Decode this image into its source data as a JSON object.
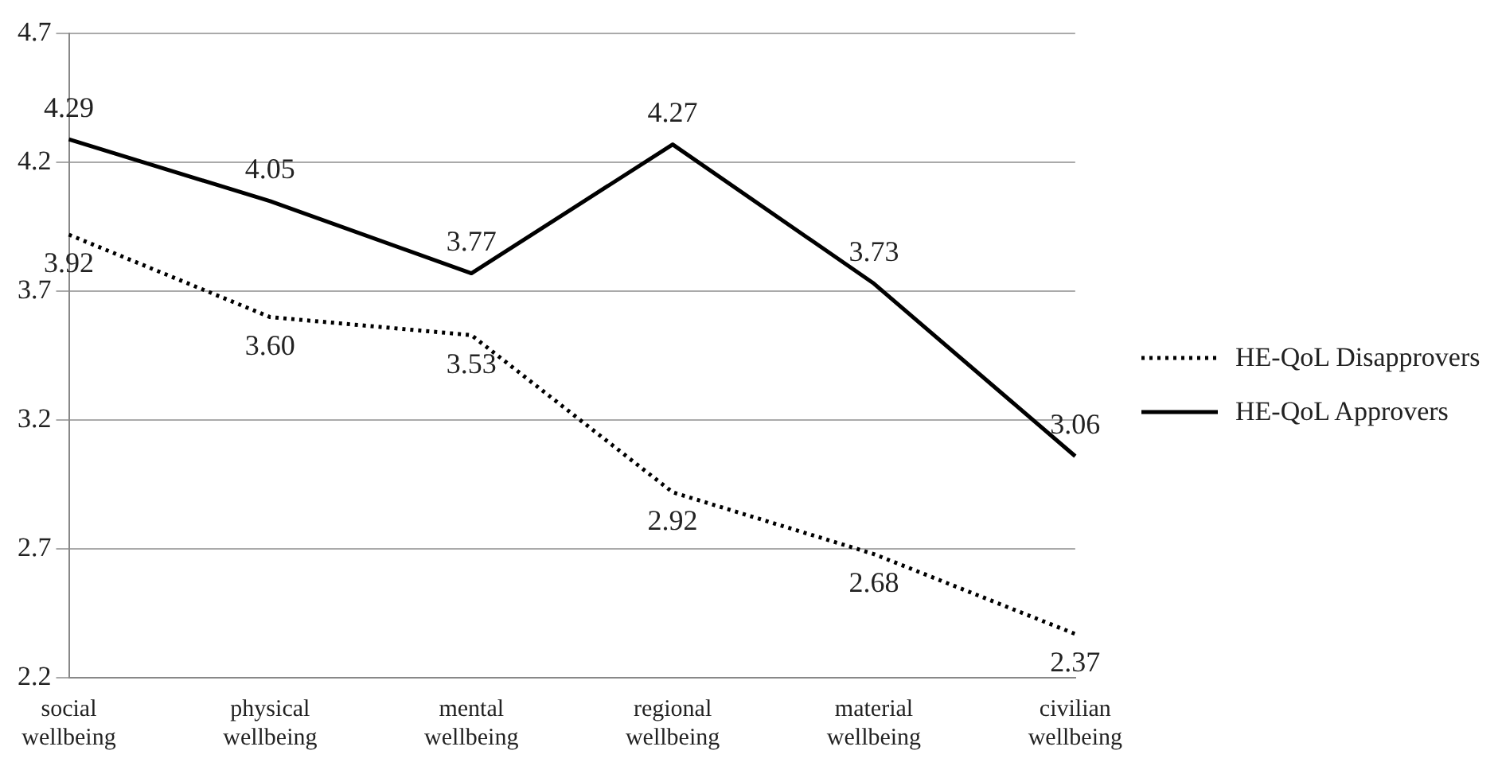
{
  "chart_data": {
    "type": "line",
    "categories": [
      "social wellbeing",
      "physical wellbeing",
      "mental wellbeing",
      "regional wellbeing",
      "material wellbeing",
      "civilian wellbeing"
    ],
    "series": [
      {
        "name": "HE-QoL Disapprovers",
        "color": "#000000",
        "line_style": "dotted",
        "values": [
          3.92,
          3.6,
          3.53,
          2.92,
          2.68,
          2.37
        ],
        "value_labels": [
          "3.92",
          "3.60",
          "3.53",
          "2.92",
          "2.68",
          "2.37"
        ]
      },
      {
        "name": "HE-QoL Approvers",
        "color": "#000000",
        "line_style": "solid",
        "values": [
          4.29,
          4.05,
          3.77,
          4.27,
          3.73,
          3.06
        ],
        "value_labels": [
          "4.29",
          "4.05",
          "3.77",
          "4.27",
          "3.73",
          "3.06"
        ]
      }
    ],
    "ylim": [
      2.2,
      4.7
    ],
    "yticks": [
      2.2,
      2.7,
      3.2,
      3.7,
      4.2,
      4.7
    ],
    "grid": "y",
    "legend": "right",
    "marker": "none"
  }
}
